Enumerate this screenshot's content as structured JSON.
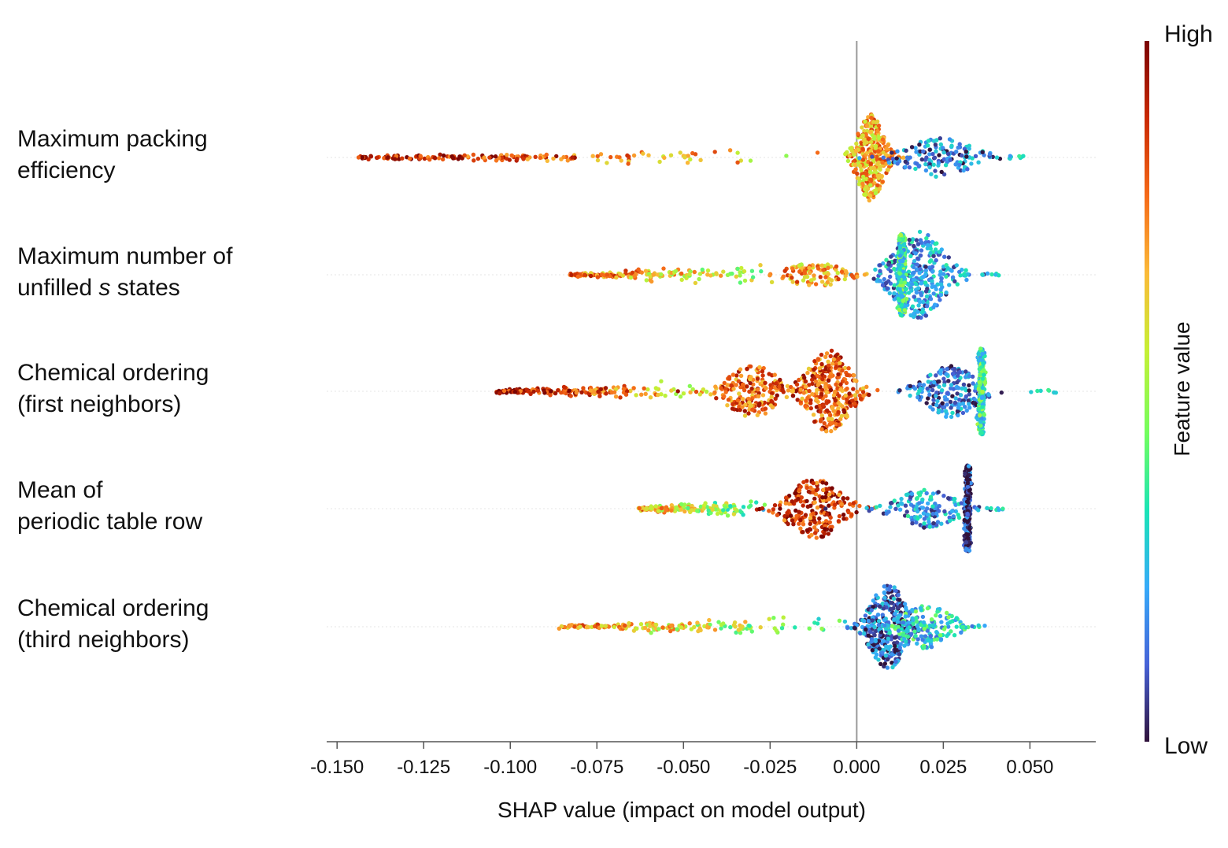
{
  "chart_data": {
    "type": "scatter",
    "subtype": "shap-beeswarm",
    "title": "",
    "xlabel": "SHAP value (impact on model output)",
    "xlim": [
      -0.153,
      0.069
    ],
    "x_ticks": [
      "-0.150",
      "-0.125",
      "-0.100",
      "-0.075",
      "-0.050",
      "-0.025",
      "0.000",
      "0.025",
      "0.050"
    ],
    "x_tick_values": [
      -0.15,
      -0.125,
      -0.1,
      -0.075,
      -0.05,
      -0.025,
      0.0,
      0.025,
      0.05
    ],
    "zero_line": 0.0,
    "colorbar": {
      "title": "Feature value",
      "high_label": "High",
      "low_label": "Low",
      "colormap": "turbo",
      "colors": [
        "#30123b",
        "#4662d7",
        "#36aaf9",
        "#1ae4b6",
        "#72fe5e",
        "#c7ef34",
        "#fbb938",
        "#f56918",
        "#c92903",
        "#7a0403"
      ]
    },
    "features": [
      {
        "label_lines": [
          "Maximum packing",
          "efficiency"
        ],
        "shap_min": -0.144,
        "shap_max": 0.05,
        "clusters": [
          {
            "center": 0.004,
            "spread": 0.003,
            "height": 1.0,
            "value": 0.7
          },
          {
            "center": 0.024,
            "spread": 0.008,
            "height": 0.45,
            "value": 0.15
          }
        ],
        "tail": {
          "from": -0.144,
          "to": -0.01,
          "value": 0.95
        },
        "notes": "high values push output negative; low values cluster around +0.02 to +0.03"
      },
      {
        "label_lines": [
          "Maximum number of",
          "unfilled s states"
        ],
        "italic_word": "s",
        "shap_min": -0.083,
        "shap_max": 0.045,
        "clusters": [
          {
            "center": 0.018,
            "spread": 0.006,
            "height": 1.0,
            "value": 0.2
          },
          {
            "center": 0.013,
            "spread": 0.0005,
            "height": 0.95,
            "value": 0.35
          },
          {
            "center": -0.012,
            "spread": 0.006,
            "height": 0.3,
            "value": 0.7
          }
        ],
        "tail": {
          "from": -0.083,
          "to": -0.02,
          "value": 0.8
        },
        "notes": "vertical cyan stripe near +0.013"
      },
      {
        "label_lines": [
          "Chemical ordering",
          "(first neighbors)"
        ],
        "shap_min": -0.104,
        "shap_max": 0.059,
        "clusters": [
          {
            "center": -0.03,
            "spread": 0.006,
            "height": 0.6,
            "value": 0.8
          },
          {
            "center": -0.008,
            "spread": 0.005,
            "height": 0.95,
            "value": 0.8
          },
          {
            "center": 0.027,
            "spread": 0.006,
            "height": 0.6,
            "value": 0.15
          },
          {
            "center": 0.036,
            "spread": 0.0004,
            "height": 1.0,
            "value": 0.35
          }
        ],
        "tail": {
          "from": -0.104,
          "to": -0.04,
          "value": 0.95
        },
        "notes": "vertical cyan stripe near +0.036"
      },
      {
        "label_lines": [
          "Mean of",
          "periodic table row"
        ],
        "shap_min": -0.063,
        "shap_max": 0.045,
        "clusters": [
          {
            "center": -0.012,
            "spread": 0.006,
            "height": 0.7,
            "value": 0.85
          },
          {
            "center": 0.02,
            "spread": 0.007,
            "height": 0.45,
            "value": 0.2
          },
          {
            "center": 0.032,
            "spread": 0.0004,
            "height": 1.0,
            "value": 0.05
          }
        ],
        "tail": {
          "from": -0.063,
          "to": -0.025,
          "value": 0.7
        },
        "notes": "vertical dark stripe near +0.032"
      },
      {
        "label_lines": [
          "Chemical ordering",
          "(third neighbors)"
        ],
        "shap_min": -0.086,
        "shap_max": 0.037,
        "clusters": [
          {
            "center": 0.009,
            "spread": 0.004,
            "height": 1.0,
            "value": 0.12
          },
          {
            "center": 0.02,
            "spread": 0.006,
            "height": 0.5,
            "value": 0.3
          }
        ],
        "tail": {
          "from": -0.086,
          "to": -0.002,
          "value": 0.75
        },
        "notes": "low values cluster around +0.01"
      }
    ]
  }
}
